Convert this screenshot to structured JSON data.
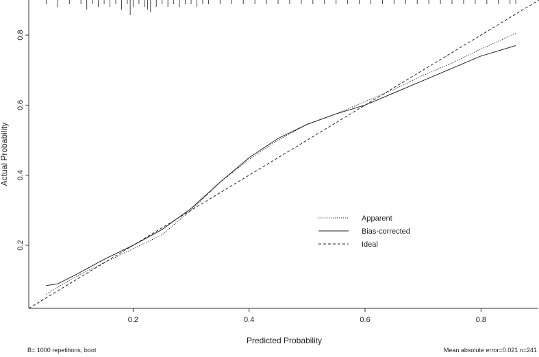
{
  "chart_data": {
    "type": "line",
    "title": "",
    "xlabel": "Predicted Probability",
    "ylabel": "Actual Probability",
    "xlim": [
      0.02,
      0.9
    ],
    "ylim": [
      0.02,
      0.9
    ],
    "x_ticks": [
      0.2,
      0.4,
      0.6,
      0.8
    ],
    "y_ticks": [
      0.2,
      0.4,
      0.6,
      0.8
    ],
    "x_tick_labels": [
      "0.2",
      "0.4",
      "0.6",
      "0.8"
    ],
    "y_tick_labels": [
      "0.2",
      "0.4",
      "0.6",
      "0.8"
    ],
    "grid": false,
    "legend_position": "lower-right",
    "series": [
      {
        "name": "Apparent",
        "style": "dotted",
        "x": [
          0.05,
          0.1,
          0.15,
          0.2,
          0.25,
          0.3,
          0.35,
          0.4,
          0.45,
          0.5,
          0.55,
          0.6,
          0.65,
          0.7,
          0.75,
          0.8,
          0.86
        ],
        "y": [
          0.06,
          0.11,
          0.15,
          0.19,
          0.23,
          0.3,
          0.38,
          0.445,
          0.5,
          0.545,
          0.575,
          0.61,
          0.645,
          0.685,
          0.72,
          0.76,
          0.805
        ]
      },
      {
        "name": "Bias-corrected",
        "style": "solid",
        "x": [
          0.05,
          0.07,
          0.1,
          0.15,
          0.2,
          0.25,
          0.3,
          0.35,
          0.4,
          0.45,
          0.5,
          0.55,
          0.6,
          0.65,
          0.7,
          0.75,
          0.8,
          0.86
        ],
        "y": [
          0.085,
          0.09,
          0.115,
          0.16,
          0.2,
          0.245,
          0.305,
          0.38,
          0.45,
          0.505,
          0.545,
          0.575,
          0.6,
          0.635,
          0.67,
          0.705,
          0.74,
          0.77
        ]
      },
      {
        "name": "Ideal",
        "style": "dashed",
        "x": [
          0.02,
          0.9
        ],
        "y": [
          0.02,
          0.9
        ]
      }
    ],
    "rug_x": [
      0.05,
      0.07,
      0.09,
      0.11,
      0.12,
      0.13,
      0.14,
      0.15,
      0.16,
      0.17,
      0.18,
      0.19,
      0.195,
      0.2,
      0.21,
      0.22,
      0.225,
      0.23,
      0.24,
      0.25,
      0.26,
      0.27,
      0.28,
      0.29,
      0.3,
      0.31,
      0.32,
      0.33,
      0.35,
      0.37,
      0.39,
      0.41,
      0.43,
      0.45,
      0.47,
      0.49,
      0.51,
      0.53,
      0.55,
      0.57,
      0.59,
      0.61,
      0.63,
      0.65,
      0.67,
      0.69,
      0.71,
      0.73,
      0.75,
      0.77,
      0.79,
      0.81,
      0.83,
      0.85,
      0.86
    ],
    "rug_counts": [
      1,
      2,
      1,
      1,
      3,
      1,
      2,
      1,
      2,
      1,
      3,
      1,
      5,
      2,
      1,
      2,
      3,
      4,
      2,
      1,
      2,
      1,
      2,
      1,
      1,
      2,
      1,
      1,
      1,
      1,
      1,
      1,
      1,
      1,
      1,
      1,
      1,
      1,
      1,
      1,
      1,
      1,
      1,
      1,
      1,
      1,
      1,
      1,
      1,
      1,
      1,
      1,
      1,
      1,
      1
    ]
  },
  "footnotes": {
    "left": "B= 1000 repetitions, boot",
    "right": "Mean absolute error=0.021 n=241"
  }
}
